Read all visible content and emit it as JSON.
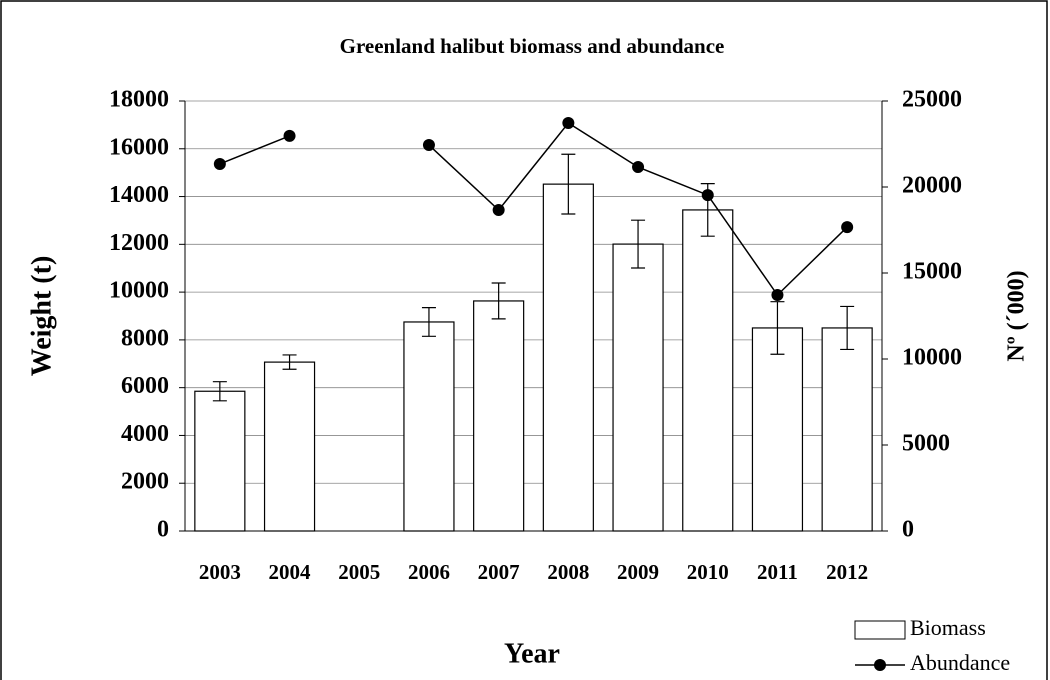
{
  "chart_data": {
    "type": "bar",
    "title": "Greenland halibut biomass and abundance",
    "x_label": "Year",
    "y_label": "Weight (t)",
    "y2_label": "Nº (´000)",
    "categories": [
      "2003",
      "2004",
      "2005",
      "2006",
      "2007",
      "2008",
      "2009",
      "2010",
      "2011",
      "2012"
    ],
    "series": [
      {
        "name": "Biomass",
        "type": "bar",
        "color": "#ffffff",
        "values": [
          5850,
          7070,
          null,
          8750,
          9630,
          14520,
          12010,
          13440,
          8500,
          8500
        ],
        "errors": [
          400,
          300,
          null,
          600,
          750,
          1250,
          1000,
          1100,
          1100,
          900
        ]
      },
      {
        "name": "Abundance",
        "type": "line",
        "axis": "y2",
        "color": "#000000",
        "values": [
          21340,
          22970,
          null,
          22440,
          18660,
          23720,
          21160,
          19530,
          13720,
          17670
        ]
      }
    ],
    "ylim": [
      0,
      18000
    ],
    "yticks": [
      0,
      2000,
      4000,
      6000,
      8000,
      10000,
      12000,
      14000,
      16000,
      18000
    ],
    "y2lim": [
      0,
      25000
    ],
    "y2ticks": [
      0,
      5000,
      10000,
      15000,
      20000,
      25000
    ],
    "grid": true,
    "legend": "bottom-right"
  }
}
